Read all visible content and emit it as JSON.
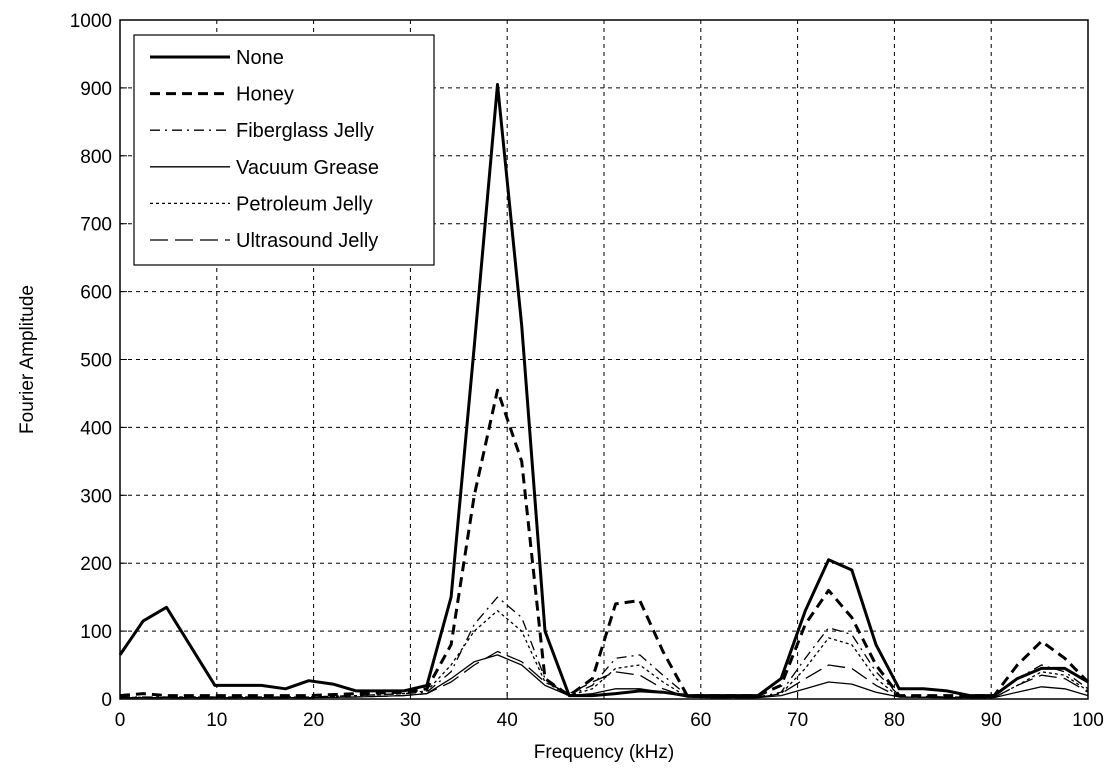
{
  "chart_data": {
    "type": "line",
    "title": "",
    "xlabel": "Frequency (kHz)",
    "ylabel": "Fourier Amplitude",
    "xlim": [
      0,
      100
    ],
    "ylim": [
      0,
      1000
    ],
    "xticks": [
      "0",
      "10",
      "20",
      "30",
      "40",
      "50",
      "60",
      "70",
      "80",
      "90",
      "100"
    ],
    "yticks": [
      "0",
      "100",
      "200",
      "300",
      "400",
      "500",
      "600",
      "700",
      "800",
      "900",
      "1000"
    ],
    "grid": true,
    "legend_position": "top-left",
    "series": [
      {
        "name": "None",
        "style": "solid-thick",
        "x": [
          0,
          2.4,
          4.8,
          9.8,
          14.6,
          17.1,
          19.5,
          22,
          24.4,
          26.8,
          29.3,
          31.7,
          34.2,
          36.6,
          39,
          41.5,
          43.9,
          46.4,
          48.8,
          51.2,
          53.7,
          56.1,
          58.6,
          61,
          63.4,
          65.9,
          68.3,
          70.8,
          73.2,
          75.6,
          78.1,
          80.5,
          83,
          85.4,
          87.8,
          90.3,
          92.7,
          95.2,
          97.6,
          100
        ],
        "y": [
          65,
          115,
          135,
          20,
          20,
          15,
          27,
          22,
          12,
          12,
          12,
          20,
          150,
          520,
          905,
          550,
          100,
          5,
          5,
          8,
          12,
          10,
          5,
          5,
          5,
          5,
          30,
          130,
          205,
          190,
          80,
          15,
          15,
          12,
          5,
          5,
          30,
          45,
          45,
          25
        ]
      },
      {
        "name": "Honey",
        "style": "dashed-thick",
        "x": [
          0,
          2.4,
          4.8,
          9.8,
          14.6,
          19.5,
          24.4,
          29.3,
          31.7,
          34.2,
          36.6,
          39,
          41.5,
          43.9,
          46.4,
          48.8,
          51.2,
          53.7,
          56.1,
          58.6,
          61,
          63.4,
          65.9,
          68.3,
          70.8,
          73.2,
          75.6,
          78.1,
          80.5,
          83,
          85.4,
          87.8,
          90.3,
          92.7,
          95.2,
          97.6,
          100
        ],
        "y": [
          5,
          8,
          5,
          5,
          5,
          5,
          8,
          10,
          15,
          80,
          300,
          455,
          350,
          30,
          5,
          30,
          140,
          145,
          70,
          5,
          5,
          5,
          5,
          20,
          110,
          160,
          120,
          50,
          5,
          5,
          5,
          5,
          5,
          50,
          85,
          60,
          25
        ]
      },
      {
        "name": "Fiberglass Jelly",
        "style": "dashdot",
        "x": [
          0,
          4.8,
          9.8,
          14.6,
          19.5,
          24.4,
          29.3,
          31.7,
          34.2,
          36.6,
          39,
          41.5,
          43.9,
          46.4,
          48.8,
          51.2,
          53.7,
          56.1,
          58.6,
          61,
          63.4,
          65.9,
          68.3,
          70.8,
          73.2,
          75.6,
          78.1,
          80.5,
          85.4,
          90.3,
          92.7,
          95.2,
          97.6,
          100
        ],
        "y": [
          3,
          3,
          3,
          3,
          3,
          5,
          8,
          10,
          40,
          110,
          150,
          120,
          30,
          5,
          20,
          60,
          65,
          35,
          5,
          3,
          3,
          3,
          10,
          60,
          105,
          95,
          40,
          5,
          3,
          3,
          30,
          50,
          40,
          15
        ]
      },
      {
        "name": "Vacuum Grease",
        "style": "solid-thin",
        "x": [
          0,
          4.8,
          9.8,
          14.6,
          19.5,
          24.4,
          29.3,
          31.7,
          34.2,
          36.6,
          39,
          41.5,
          43.9,
          46.4,
          48.8,
          51.2,
          53.7,
          56.1,
          58.6,
          61,
          63.4,
          65.9,
          68.3,
          70.8,
          73.2,
          75.6,
          78.1,
          80.5,
          85.4,
          90.3,
          92.7,
          95.2,
          97.6,
          100
        ],
        "y": [
          2,
          2,
          2,
          2,
          2,
          3,
          5,
          8,
          30,
          55,
          65,
          50,
          20,
          5,
          8,
          15,
          15,
          10,
          3,
          2,
          2,
          2,
          5,
          15,
          25,
          22,
          10,
          3,
          2,
          2,
          10,
          18,
          15,
          5
        ]
      },
      {
        "name": "Petroleum Jelly",
        "style": "dotted",
        "x": [
          0,
          4.8,
          9.8,
          14.6,
          19.5,
          24.4,
          29.3,
          31.7,
          34.2,
          36.6,
          39,
          41.5,
          43.9,
          46.4,
          48.8,
          51.2,
          53.7,
          56.1,
          58.6,
          61,
          63.4,
          65.9,
          68.3,
          70.8,
          73.2,
          75.6,
          78.1,
          80.5,
          85.4,
          90.3,
          92.7,
          95.2,
          97.6,
          100
        ],
        "y": [
          2,
          3,
          3,
          3,
          3,
          5,
          8,
          12,
          50,
          100,
          130,
          100,
          25,
          5,
          15,
          45,
          50,
          25,
          3,
          2,
          2,
          2,
          8,
          45,
          90,
          80,
          30,
          3,
          2,
          2,
          20,
          40,
          35,
          12
        ]
      },
      {
        "name": "Ultrasound Jelly",
        "style": "longdash",
        "x": [
          0,
          4.8,
          9.8,
          14.6,
          19.5,
          24.4,
          29.3,
          31.7,
          34.2,
          36.6,
          39,
          41.5,
          43.9,
          46.4,
          48.8,
          51.2,
          53.7,
          56.1,
          58.6,
          61,
          63.4,
          65.9,
          68.3,
          70.8,
          73.2,
          75.6,
          78.1,
          80.5,
          85.4,
          90.3,
          92.7,
          95.2,
          97.6,
          100
        ],
        "y": [
          2,
          2,
          2,
          2,
          2,
          3,
          5,
          8,
          25,
          50,
          70,
          55,
          25,
          8,
          25,
          40,
          35,
          15,
          3,
          2,
          2,
          2,
          8,
          30,
          50,
          45,
          20,
          3,
          2,
          2,
          20,
          35,
          30,
          10
        ]
      }
    ]
  }
}
